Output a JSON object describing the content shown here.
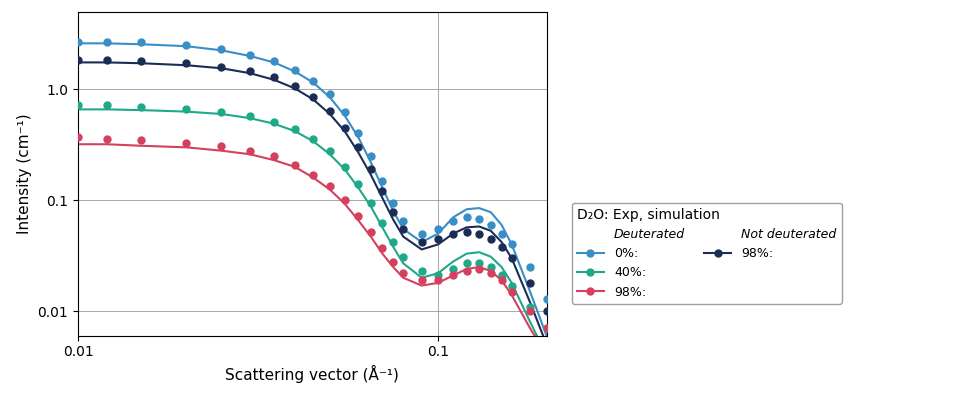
{
  "chart_data": {
    "type": "line",
    "x_label": "Scattering vector (Å⁻¹)",
    "y_label": "Intensity (cm⁻¹)",
    "log": true,
    "grid": true,
    "legend": "lower left",
    "legend_title": "D₂O: Exp, simulation",
    "xlim": [
      0.01,
      0.2
    ],
    "ylim": [
      0.006,
      5
    ],
    "xticks": [
      0.01,
      0.1
    ],
    "yticks": [
      0.01,
      0.1,
      {
        "value": 1,
        "label": "1.0"
      }
    ],
    "x": [
      0.01,
      0.012,
      0.015,
      0.02,
      0.025,
      0.03,
      0.035,
      0.04,
      0.045,
      0.05,
      0.055,
      0.06,
      0.065,
      0.07,
      0.075,
      0.08,
      0.09,
      0.1,
      0.11,
      0.12,
      0.13,
      0.14,
      0.15,
      0.16,
      0.18,
      0.2
    ],
    "groups": [
      "Deuterated",
      "Not deuterated"
    ],
    "series": [
      {
        "name": "0%:",
        "group": "Deuterated",
        "color": "#3a8ec6",
        "marker": "o",
        "line_style": "solid",
        "values": [
          2.7,
          2.7,
          2.65,
          2.5,
          2.3,
          2.05,
          1.8,
          1.5,
          1.2,
          0.9,
          0.62,
          0.4,
          0.25,
          0.15,
          0.095,
          0.065,
          0.05,
          0.055,
          0.065,
          0.07,
          0.068,
          0.06,
          0.05,
          0.04,
          0.025,
          0.013
        ],
        "simulation": [
          2.6,
          2.6,
          2.55,
          2.45,
          2.25,
          2.0,
          1.75,
          1.45,
          1.15,
          0.85,
          0.58,
          0.37,
          0.22,
          0.13,
          0.08,
          0.055,
          0.042,
          0.05,
          0.07,
          0.083,
          0.085,
          0.078,
          0.06,
          0.04,
          0.015,
          0.006
        ]
      },
      {
        "name": "40%:",
        "group": "Deuterated",
        "color": "#1fa889",
        "marker": "o",
        "line_style": "solid",
        "values": [
          0.72,
          0.72,
          0.7,
          0.67,
          0.63,
          0.58,
          0.51,
          0.44,
          0.36,
          0.28,
          0.2,
          0.14,
          0.095,
          0.062,
          0.042,
          0.031,
          0.023,
          0.021,
          0.024,
          0.027,
          0.027,
          0.025,
          0.021,
          0.017,
          0.011,
          0.007
        ],
        "simulation": [
          0.66,
          0.66,
          0.65,
          0.63,
          0.6,
          0.55,
          0.49,
          0.42,
          0.34,
          0.26,
          0.19,
          0.13,
          0.088,
          0.057,
          0.038,
          0.027,
          0.02,
          0.022,
          0.028,
          0.033,
          0.034,
          0.031,
          0.025,
          0.018,
          0.008,
          0.004
        ]
      },
      {
        "name": "98%:",
        "group": "Deuterated",
        "color": "#d5405e",
        "marker": "o",
        "line_style": "solid",
        "values": [
          0.37,
          0.36,
          0.35,
          0.33,
          0.31,
          0.28,
          0.25,
          0.21,
          0.17,
          0.135,
          0.1,
          0.072,
          0.052,
          0.037,
          0.028,
          0.022,
          0.019,
          0.019,
          0.021,
          0.023,
          0.024,
          0.022,
          0.019,
          0.015,
          0.01,
          0.007
        ],
        "simulation": [
          0.32,
          0.32,
          0.31,
          0.3,
          0.28,
          0.26,
          0.23,
          0.2,
          0.16,
          0.125,
          0.093,
          0.066,
          0.047,
          0.033,
          0.025,
          0.02,
          0.017,
          0.018,
          0.021,
          0.024,
          0.025,
          0.023,
          0.019,
          0.014,
          0.007,
          0.004
        ]
      },
      {
        "name": "98%:",
        "group": "Not deuterated",
        "color": "#1c2d55",
        "marker": "o",
        "line_style": "solid",
        "values": [
          1.85,
          1.85,
          1.8,
          1.72,
          1.6,
          1.45,
          1.28,
          1.08,
          0.86,
          0.64,
          0.45,
          0.3,
          0.19,
          0.12,
          0.078,
          0.055,
          0.042,
          0.045,
          0.05,
          0.052,
          0.05,
          0.045,
          0.038,
          0.03,
          0.018,
          0.01
        ],
        "simulation": [
          1.75,
          1.75,
          1.72,
          1.65,
          1.55,
          1.4,
          1.22,
          1.02,
          0.81,
          0.6,
          0.42,
          0.27,
          0.17,
          0.105,
          0.067,
          0.047,
          0.036,
          0.04,
          0.05,
          0.057,
          0.058,
          0.053,
          0.042,
          0.03,
          0.012,
          0.005
        ]
      }
    ]
  }
}
